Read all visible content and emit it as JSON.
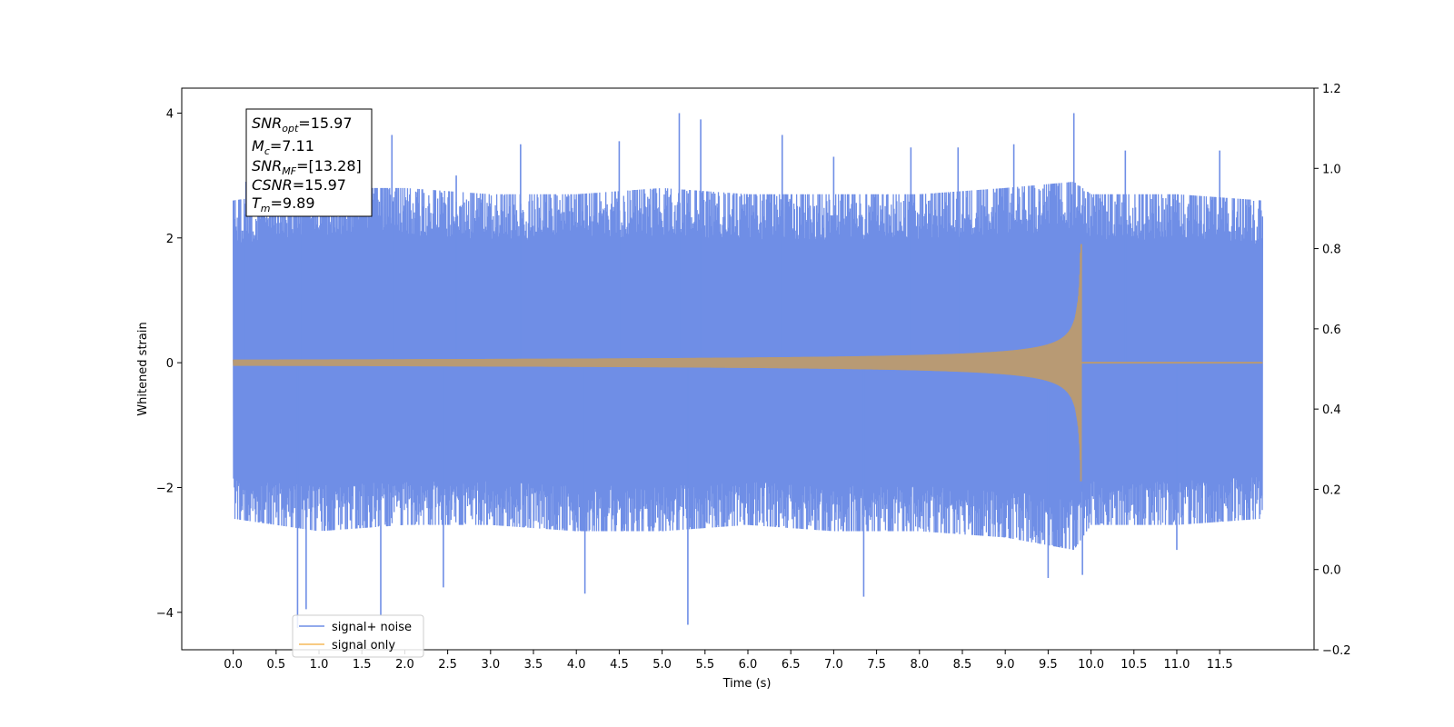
{
  "colors": {
    "noise": "#6f8ee6",
    "signal": "#f5b85a",
    "overlap": "#b89a74"
  },
  "chart_data": {
    "type": "line",
    "xlabel": "Time (s)",
    "ylabel": "Whitened strain",
    "xlim": [
      -0.6,
      12.6
    ],
    "ylim": [
      -4.6,
      4.4
    ],
    "y2lim": [
      -0.2,
      1.2
    ],
    "x_ticks": [
      0.0,
      0.5,
      1.0,
      1.5,
      2.0,
      2.5,
      3.0,
      3.5,
      4.0,
      4.5,
      5.0,
      5.5,
      6.0,
      6.5,
      7.0,
      7.5,
      8.0,
      8.5,
      9.0,
      9.5,
      10.0,
      10.5,
      11.0,
      11.5
    ],
    "x_tick_labels": [
      "0.0",
      "0.5",
      "1.0",
      "1.5",
      "2.0",
      "2.5",
      "3.0",
      "3.5",
      "4.0",
      "4.5",
      "5.0",
      "5.5",
      "6.0",
      "6.5",
      "7.0",
      "7.5",
      "8.0",
      "8.5",
      "9.0",
      "9.5",
      "10.0",
      "10.5",
      "11.0",
      "11.5"
    ],
    "y_ticks": [
      -4,
      -2,
      0,
      2,
      4
    ],
    "y_tick_labels": [
      "−4",
      "−2",
      "0",
      "2",
      "4"
    ],
    "y2_ticks": [
      -0.2,
      0.0,
      0.2,
      0.4,
      0.6,
      0.8,
      1.0,
      1.2
    ],
    "y2_tick_labels": [
      "−0.2",
      "0.0",
      "0.2",
      "0.4",
      "0.6",
      "0.8",
      "1.0",
      "1.2"
    ],
    "series": [
      {
        "name": "signal+ noise",
        "x_range": [
          0.0,
          12.0
        ],
        "envelope_upper": [
          [
            0.0,
            2.6
          ],
          [
            1.0,
            2.8
          ],
          [
            2.0,
            2.8
          ],
          [
            3.0,
            2.7
          ],
          [
            4.0,
            2.7
          ],
          [
            5.0,
            2.8
          ],
          [
            6.0,
            2.7
          ],
          [
            7.0,
            2.7
          ],
          [
            8.0,
            2.7
          ],
          [
            9.0,
            2.8
          ],
          [
            9.8,
            2.9
          ],
          [
            10.0,
            2.7
          ],
          [
            11.0,
            2.7
          ],
          [
            12.0,
            2.6
          ]
        ],
        "envelope_lower": [
          [
            0.0,
            -2.5
          ],
          [
            1.0,
            -2.7
          ],
          [
            2.0,
            -2.6
          ],
          [
            3.0,
            -2.6
          ],
          [
            4.0,
            -2.7
          ],
          [
            5.0,
            -2.7
          ],
          [
            6.0,
            -2.6
          ],
          [
            7.0,
            -2.7
          ],
          [
            8.0,
            -2.7
          ],
          [
            9.0,
            -2.8
          ],
          [
            9.8,
            -3.0
          ],
          [
            10.0,
            -2.6
          ],
          [
            11.0,
            -2.6
          ],
          [
            12.0,
            -2.5
          ]
        ],
        "peaks": [
          [
            0.15,
            2.9
          ],
          [
            0.8,
            3.3
          ],
          [
            1.85,
            3.65
          ],
          [
            2.6,
            3.0
          ],
          [
            3.35,
            3.5
          ],
          [
            4.5,
            3.55
          ],
          [
            5.2,
            4.0
          ],
          [
            5.45,
            3.9
          ],
          [
            6.4,
            3.65
          ],
          [
            7.0,
            3.3
          ],
          [
            7.9,
            3.45
          ],
          [
            8.45,
            3.45
          ],
          [
            9.1,
            3.5
          ],
          [
            9.8,
            4.0
          ],
          [
            10.4,
            3.4
          ],
          [
            11.5,
            3.4
          ],
          [
            0.75,
            -4.25
          ],
          [
            0.85,
            -3.95
          ],
          [
            1.72,
            -4.05
          ],
          [
            2.45,
            -3.6
          ],
          [
            4.1,
            -3.7
          ],
          [
            5.3,
            -4.2
          ],
          [
            7.35,
            -3.75
          ],
          [
            9.5,
            -3.45
          ],
          [
            9.9,
            -3.4
          ],
          [
            11.0,
            -3.0
          ]
        ]
      },
      {
        "name": "signal only",
        "chirp_start": 0.0,
        "merger_time": 9.89,
        "end": 12.0,
        "start_amplitude": 0.05,
        "peak_amplitude": 1.9
      }
    ]
  },
  "annotation": {
    "lines": [
      {
        "main": "SNR",
        "sub": "opt",
        "value": "=15.97"
      },
      {
        "main": "M",
        "sub": "c",
        "value": "=7.11"
      },
      {
        "main": "SNR",
        "sub": "MF",
        "value": "=[13.28]"
      },
      {
        "main": "CSNR",
        "sub": "",
        "value": "=15.97"
      },
      {
        "main": "T",
        "sub": "m",
        "value": "=9.89"
      }
    ]
  },
  "legend": {
    "items": [
      {
        "label": "signal+ noise",
        "color": "#6f8ee6"
      },
      {
        "label": "signal only",
        "color": "#f5b85a"
      }
    ]
  }
}
